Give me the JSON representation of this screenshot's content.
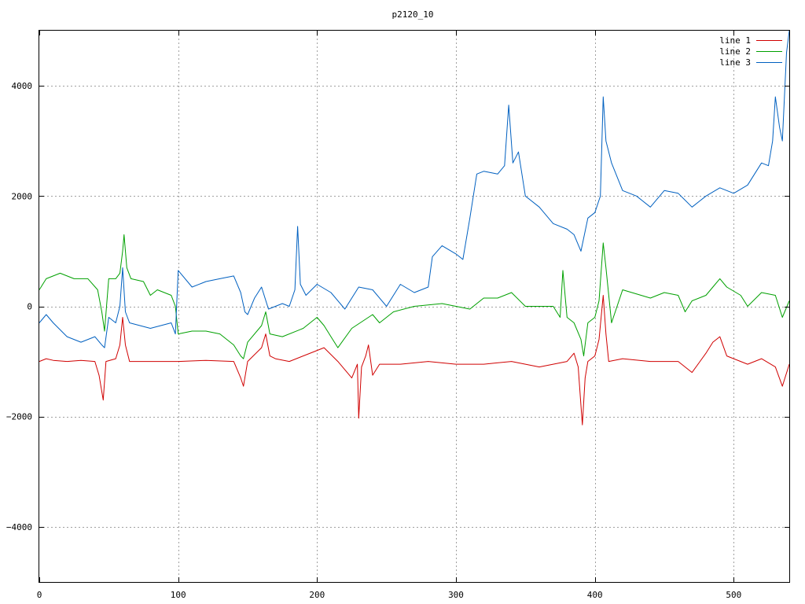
{
  "chart_data": {
    "type": "line",
    "title": "p2120_10",
    "xlabel": "",
    "ylabel": "",
    "xlim": [
      0,
      540
    ],
    "ylim": [
      -5000,
      5000
    ],
    "x_ticks": [
      0,
      100,
      200,
      300,
      400,
      500
    ],
    "y_ticks": [
      -4000,
      -2000,
      0,
      2000,
      4000
    ],
    "y_tick_labels": [
      "−4000",
      "−2000",
      "0",
      "2000",
      "4000"
    ],
    "grid": true,
    "legend_position": "top-right",
    "series": [
      {
        "name": "line 1",
        "color": "#d00000",
        "points": [
          [
            0,
            -1000
          ],
          [
            5,
            -950
          ],
          [
            10,
            -980
          ],
          [
            20,
            -1000
          ],
          [
            30,
            -980
          ],
          [
            40,
            -1000
          ],
          [
            43,
            -1250
          ],
          [
            46,
            -1700
          ],
          [
            48,
            -1000
          ],
          [
            55,
            -950
          ],
          [
            58,
            -700
          ],
          [
            60,
            -200
          ],
          [
            62,
            -700
          ],
          [
            65,
            -1000
          ],
          [
            80,
            -1000
          ],
          [
            100,
            -1000
          ],
          [
            120,
            -980
          ],
          [
            140,
            -1000
          ],
          [
            145,
            -1300
          ],
          [
            147,
            -1450
          ],
          [
            150,
            -1000
          ],
          [
            160,
            -750
          ],
          [
            163,
            -500
          ],
          [
            166,
            -900
          ],
          [
            170,
            -950
          ],
          [
            180,
            -1000
          ],
          [
            195,
            -850
          ],
          [
            205,
            -750
          ],
          [
            215,
            -1000
          ],
          [
            225,
            -1300
          ],
          [
            229,
            -1050
          ],
          [
            230,
            -2030
          ],
          [
            232,
            -1100
          ],
          [
            235,
            -900
          ],
          [
            237,
            -700
          ],
          [
            240,
            -1250
          ],
          [
            245,
            -1050
          ],
          [
            260,
            -1050
          ],
          [
            280,
            -1000
          ],
          [
            300,
            -1050
          ],
          [
            320,
            -1050
          ],
          [
            340,
            -1000
          ],
          [
            360,
            -1100
          ],
          [
            380,
            -1000
          ],
          [
            385,
            -850
          ],
          [
            388,
            -1100
          ],
          [
            390,
            -1800
          ],
          [
            391,
            -2150
          ],
          [
            393,
            -1300
          ],
          [
            395,
            -1000
          ],
          [
            400,
            -900
          ],
          [
            403,
            -600
          ],
          [
            406,
            200
          ],
          [
            408,
            -500
          ],
          [
            410,
            -1000
          ],
          [
            420,
            -950
          ],
          [
            440,
            -1000
          ],
          [
            460,
            -1000
          ],
          [
            470,
            -1200
          ],
          [
            480,
            -850
          ],
          [
            485,
            -650
          ],
          [
            490,
            -550
          ],
          [
            495,
            -900
          ],
          [
            500,
            -950
          ],
          [
            510,
            -1050
          ],
          [
            520,
            -950
          ],
          [
            530,
            -1100
          ],
          [
            535,
            -1450
          ],
          [
            540,
            -1050
          ]
        ]
      },
      {
        "name": "line 2",
        "color": "#00a000",
        "points": [
          [
            0,
            300
          ],
          [
            5,
            500
          ],
          [
            15,
            600
          ],
          [
            25,
            500
          ],
          [
            35,
            500
          ],
          [
            42,
            300
          ],
          [
            45,
            -100
          ],
          [
            47,
            -450
          ],
          [
            50,
            500
          ],
          [
            55,
            500
          ],
          [
            58,
            600
          ],
          [
            60,
            1000
          ],
          [
            61,
            1300
          ],
          [
            63,
            700
          ],
          [
            66,
            500
          ],
          [
            75,
            450
          ],
          [
            80,
            200
          ],
          [
            85,
            300
          ],
          [
            95,
            200
          ],
          [
            98,
            0
          ],
          [
            100,
            -500
          ],
          [
            110,
            -450
          ],
          [
            120,
            -450
          ],
          [
            130,
            -500
          ],
          [
            140,
            -700
          ],
          [
            145,
            -900
          ],
          [
            147,
            -950
          ],
          [
            150,
            -650
          ],
          [
            160,
            -350
          ],
          [
            163,
            -100
          ],
          [
            166,
            -500
          ],
          [
            175,
            -550
          ],
          [
            190,
            -400
          ],
          [
            200,
            -200
          ],
          [
            205,
            -350
          ],
          [
            210,
            -550
          ],
          [
            215,
            -750
          ],
          [
            225,
            -400
          ],
          [
            240,
            -150
          ],
          [
            245,
            -300
          ],
          [
            255,
            -100
          ],
          [
            270,
            0
          ],
          [
            290,
            50
          ],
          [
            310,
            -50
          ],
          [
            320,
            150
          ],
          [
            330,
            150
          ],
          [
            340,
            250
          ],
          [
            350,
            0
          ],
          [
            370,
            0
          ],
          [
            375,
            -200
          ],
          [
            377,
            650
          ],
          [
            380,
            -200
          ],
          [
            385,
            -300
          ],
          [
            390,
            -600
          ],
          [
            392,
            -900
          ],
          [
            395,
            -300
          ],
          [
            400,
            -200
          ],
          [
            403,
            100
          ],
          [
            406,
            1150
          ],
          [
            408,
            700
          ],
          [
            412,
            -300
          ],
          [
            420,
            300
          ],
          [
            440,
            150
          ],
          [
            450,
            250
          ],
          [
            460,
            200
          ],
          [
            465,
            -100
          ],
          [
            470,
            100
          ],
          [
            480,
            200
          ],
          [
            485,
            350
          ],
          [
            490,
            500
          ],
          [
            495,
            350
          ],
          [
            505,
            200
          ],
          [
            510,
            0
          ],
          [
            520,
            250
          ],
          [
            530,
            200
          ],
          [
            535,
            -200
          ],
          [
            540,
            100
          ]
        ]
      },
      {
        "name": "line 3",
        "color": "#0060c0",
        "points": [
          [
            0,
            -300
          ],
          [
            5,
            -150
          ],
          [
            10,
            -300
          ],
          [
            20,
            -550
          ],
          [
            30,
            -650
          ],
          [
            40,
            -550
          ],
          [
            45,
            -700
          ],
          [
            47,
            -750
          ],
          [
            50,
            -200
          ],
          [
            55,
            -300
          ],
          [
            58,
            0
          ],
          [
            60,
            700
          ],
          [
            62,
            -100
          ],
          [
            65,
            -300
          ],
          [
            80,
            -400
          ],
          [
            95,
            -300
          ],
          [
            98,
            -500
          ],
          [
            100,
            650
          ],
          [
            110,
            350
          ],
          [
            120,
            450
          ],
          [
            130,
            500
          ],
          [
            140,
            550
          ],
          [
            145,
            250
          ],
          [
            148,
            -100
          ],
          [
            150,
            -150
          ],
          [
            155,
            150
          ],
          [
            160,
            350
          ],
          [
            165,
            -50
          ],
          [
            175,
            50
          ],
          [
            180,
            0
          ],
          [
            184,
            300
          ],
          [
            186,
            1450
          ],
          [
            188,
            400
          ],
          [
            192,
            200
          ],
          [
            200,
            400
          ],
          [
            210,
            250
          ],
          [
            220,
            -50
          ],
          [
            230,
            350
          ],
          [
            240,
            300
          ],
          [
            250,
            0
          ],
          [
            260,
            400
          ],
          [
            270,
            250
          ],
          [
            280,
            350
          ],
          [
            283,
            900
          ],
          [
            290,
            1100
          ],
          [
            300,
            950
          ],
          [
            305,
            850
          ],
          [
            310,
            1600
          ],
          [
            315,
            2400
          ],
          [
            320,
            2450
          ],
          [
            330,
            2400
          ],
          [
            335,
            2550
          ],
          [
            338,
            3650
          ],
          [
            341,
            2600
          ],
          [
            345,
            2800
          ],
          [
            350,
            2000
          ],
          [
            360,
            1800
          ],
          [
            370,
            1500
          ],
          [
            380,
            1400
          ],
          [
            385,
            1300
          ],
          [
            390,
            1000
          ],
          [
            395,
            1600
          ],
          [
            400,
            1700
          ],
          [
            404,
            2000
          ],
          [
            406,
            3800
          ],
          [
            408,
            3000
          ],
          [
            412,
            2600
          ],
          [
            420,
            2100
          ],
          [
            430,
            2000
          ],
          [
            440,
            1800
          ],
          [
            450,
            2100
          ],
          [
            460,
            2050
          ],
          [
            470,
            1800
          ],
          [
            480,
            2000
          ],
          [
            490,
            2150
          ],
          [
            500,
            2050
          ],
          [
            510,
            2200
          ],
          [
            520,
            2600
          ],
          [
            525,
            2550
          ],
          [
            528,
            3000
          ],
          [
            530,
            3800
          ],
          [
            533,
            3250
          ],
          [
            535,
            3000
          ],
          [
            538,
            4600
          ],
          [
            540,
            5000
          ]
        ]
      }
    ]
  }
}
